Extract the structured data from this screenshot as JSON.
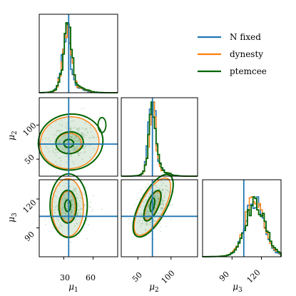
{
  "chart_data": {
    "type": "corner",
    "parameters": [
      "μ1",
      "μ2",
      "μ3"
    ],
    "axis_labels": {
      "mu1": "μ",
      "mu1_sub": "1",
      "mu2": "μ",
      "mu2_sub": "2",
      "mu3": "μ",
      "mu3_sub": "3"
    },
    "ranges": {
      "mu1": [
        5,
        85
      ],
      "mu2": [
        25,
        140
      ],
      "mu3": [
        60,
        140
      ]
    },
    "ticks": {
      "mu1": [
        {
          "value": 30,
          "label": "30"
        },
        {
          "value": 60,
          "label": "60"
        }
      ],
      "mu2_x": [
        {
          "value": 50,
          "label": "50"
        },
        {
          "value": 100,
          "label": "100"
        }
      ],
      "mu2_y": [
        {
          "value": 50,
          "label": "50"
        },
        {
          "value": 100,
          "label": "100"
        }
      ],
      "mu3_x": [
        {
          "value": 90,
          "label": "90"
        },
        {
          "value": 120,
          "label": "120"
        }
      ],
      "mu3_y": [
        {
          "value": 90,
          "label": "90"
        },
        {
          "value": 120,
          "label": "120"
        }
      ]
    },
    "truths": {
      "mu1": 35,
      "mu2": 72,
      "mu3": 102
    },
    "series": [
      {
        "name": "N fixed",
        "color": "#1f77b4"
      },
      {
        "name": "dynesty",
        "color": "#ff7f0e"
      },
      {
        "name": "ptemcee",
        "color": "#006400"
      }
    ],
    "legend_placement": "top-right",
    "marginal_peaks": {
      "mu1": 33,
      "mu2": 72,
      "mu3": 113
    }
  }
}
